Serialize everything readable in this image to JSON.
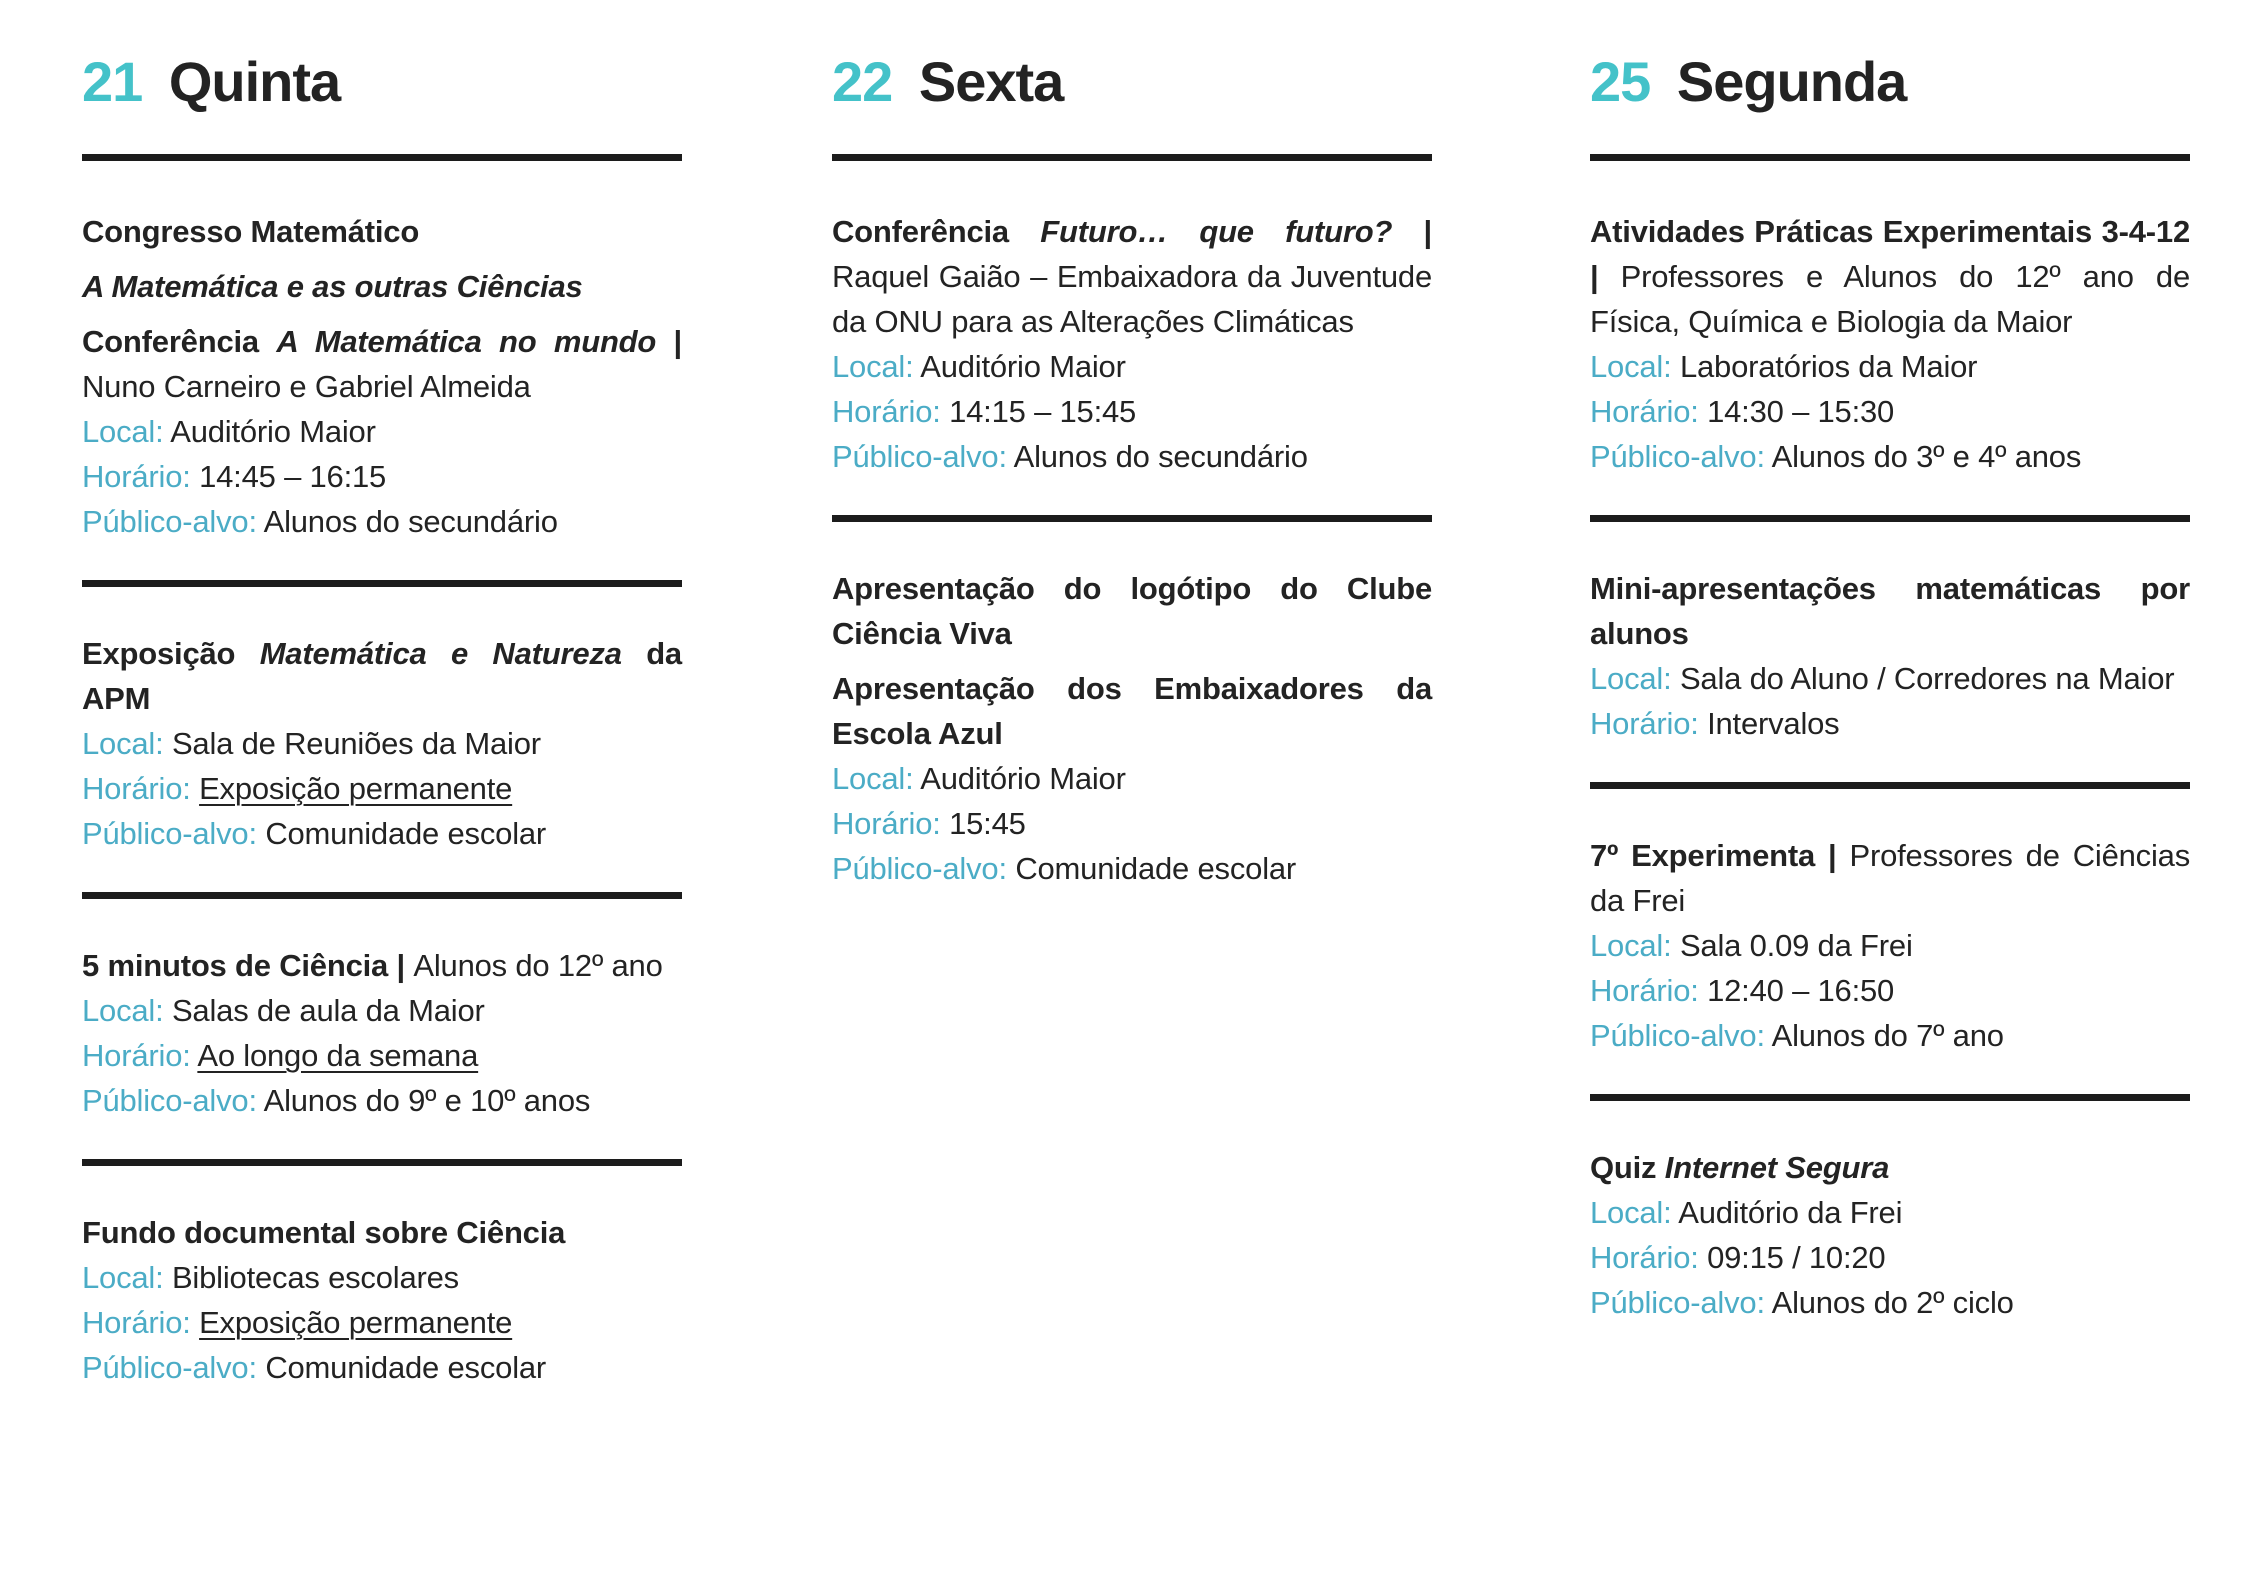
{
  "accent": {
    "day_number_color": "#44c2c9",
    "label_color": "#4bacc6",
    "text_color": "#232323",
    "divider_color": "#1c1c1c"
  },
  "columns": [
    {
      "day_number": "21",
      "day_name": "Quinta",
      "events": [
        {
          "title_paragraphs": [
            {
              "segments": [
                {
                  "text": "Congresso Matemático",
                  "style": "bold"
                }
              ]
            },
            {
              "segments": [
                {
                  "text": "A Matemática e as outras Ciências",
                  "style": "bold-italic"
                }
              ]
            },
            {
              "segments": [
                {
                  "text": "Conferência ",
                  "style": "bold"
                },
                {
                  "text": "A Matemática no mundo",
                  "style": "bold-italic"
                },
                {
                  "text": " | ",
                  "style": "bold"
                },
                {
                  "text": "Nuno Carneiro e Gabriel Almeida",
                  "style": "regular"
                }
              ]
            }
          ],
          "details": [
            {
              "label": "Local:",
              "value": "Auditório Maior",
              "underline": false
            },
            {
              "label": "Horário:",
              "value": "14:45 – 16:15",
              "underline": false
            },
            {
              "label": "Público-alvo:",
              "value": "Alunos do secundário",
              "underline": false
            }
          ]
        },
        {
          "title_paragraphs": [
            {
              "segments": [
                {
                  "text": "Exposição ",
                  "style": "bold"
                },
                {
                  "text": "Matemática e Natureza",
                  "style": "bold-italic"
                },
                {
                  "text": " da APM",
                  "style": "bold"
                }
              ]
            }
          ],
          "details": [
            {
              "label": "Local:",
              "value": "Sala de Reuniões da Maior",
              "underline": false
            },
            {
              "label": "Horário:",
              "value": "Exposição permanente",
              "underline": true
            },
            {
              "label": "Público-alvo:",
              "value": "Comunidade escolar",
              "underline": false
            }
          ]
        },
        {
          "title_paragraphs": [
            {
              "segments": [
                {
                  "text": "5 minutos de Ciência | ",
                  "style": "bold"
                },
                {
                  "text": "Alunos do 12º ano",
                  "style": "regular"
                }
              ]
            }
          ],
          "details": [
            {
              "label": "Local:",
              "value": "Salas de aula da Maior",
              "underline": false
            },
            {
              "label": "Horário:",
              "value": "Ao longo da semana",
              "underline": true
            },
            {
              "label": "Público-alvo:",
              "value": "Alunos do 9º e 10º anos",
              "underline": false
            }
          ]
        },
        {
          "title_paragraphs": [
            {
              "segments": [
                {
                  "text": "Fundo documental sobre Ciência",
                  "style": "bold"
                }
              ]
            }
          ],
          "details": [
            {
              "label": "Local:",
              "value": "Bibliotecas escolares",
              "underline": false
            },
            {
              "label": "Horário:",
              "value": "Exposição permanente",
              "underline": true
            },
            {
              "label": "Público-alvo:",
              "value": "Comunidade escolar",
              "underline": false
            }
          ]
        }
      ]
    },
    {
      "day_number": "22",
      "day_name": "Sexta",
      "events": [
        {
          "title_paragraphs": [
            {
              "segments": [
                {
                  "text": "Conferência ",
                  "style": "bold"
                },
                {
                  "text": "Futuro… que futuro?",
                  "style": "bold-italic"
                },
                {
                  "text": " | ",
                  "style": "bold"
                },
                {
                  "text": "Raquel Gaião – Embaixadora da Juventude da ONU para as Alterações Climáticas",
                  "style": "regular"
                }
              ]
            }
          ],
          "details": [
            {
              "label": "Local:",
              "value": "Auditório Maior",
              "underline": false
            },
            {
              "label": "Horário:",
              "value": "14:15 – 15:45",
              "underline": false
            },
            {
              "label": "Público-alvo:",
              "value": "Alunos do secundário",
              "underline": false
            }
          ]
        },
        {
          "title_paragraphs": [
            {
              "segments": [
                {
                  "text": "Apresentação do logótipo do Clube Ciência Viva",
                  "style": "bold"
                }
              ]
            },
            {
              "segments": [
                {
                  "text": "Apresentação dos Embaixadores da Escola Azul",
                  "style": "bold"
                }
              ]
            }
          ],
          "details": [
            {
              "label": "Local:",
              "value": "Auditório Maior",
              "underline": false
            },
            {
              "label": "Horário:",
              "value": "15:45",
              "underline": false
            },
            {
              "label": "Público-alvo:",
              "value": "Comunidade escolar",
              "underline": false
            }
          ]
        }
      ]
    },
    {
      "day_number": "25",
      "day_name": "Segunda",
      "events": [
        {
          "title_paragraphs": [
            {
              "segments": [
                {
                  "text": "Atividades Práticas Experimentais 3-4-12 | ",
                  "style": "bold"
                },
                {
                  "text": "Professores e Alunos do 12º ano de Física, Química e Biologia da Maior",
                  "style": "regular"
                }
              ]
            }
          ],
          "details": [
            {
              "label": "Local:",
              "value": "Laboratórios da Maior",
              "underline": false
            },
            {
              "label": "Horário:",
              "value": "14:30 – 15:30",
              "underline": false
            },
            {
              "label": "Público-alvo:",
              "value": "Alunos do 3º e 4º anos",
              "underline": false
            }
          ]
        },
        {
          "title_paragraphs": [
            {
              "segments": [
                {
                  "text": "Mini-apresentações matemáticas por alunos",
                  "style": "bold"
                }
              ]
            }
          ],
          "details": [
            {
              "label": "Local:",
              "value": "Sala do Aluno / Corredores na Maior",
              "underline": false
            },
            {
              "label": "Horário:",
              "value": "Intervalos",
              "underline": false
            }
          ]
        },
        {
          "title_paragraphs": [
            {
              "segments": [
                {
                  "text": "7º Experimenta | ",
                  "style": "bold"
                },
                {
                  "text": "Professores de Ciências da Frei",
                  "style": "regular"
                }
              ]
            }
          ],
          "details": [
            {
              "label": "Local:",
              "value": "Sala 0.09 da Frei",
              "underline": false
            },
            {
              "label": "Horário:",
              "value": "12:40 – 16:50",
              "underline": false
            },
            {
              "label": "Público-alvo:",
              "value": "Alunos do 7º ano",
              "underline": false
            }
          ]
        },
        {
          "title_paragraphs": [
            {
              "segments": [
                {
                  "text": "Quiz ",
                  "style": "bold"
                },
                {
                  "text": "Internet Segura",
                  "style": "bold-italic"
                }
              ]
            }
          ],
          "details": [
            {
              "label": "Local:",
              "value": "Auditório da Frei",
              "underline": false
            },
            {
              "label": "Horário:",
              "value": "09:15 / 10:20",
              "underline": false
            },
            {
              "label": "Público-alvo:",
              "value": "Alunos do 2º ciclo",
              "underline": false
            }
          ]
        }
      ]
    }
  ]
}
